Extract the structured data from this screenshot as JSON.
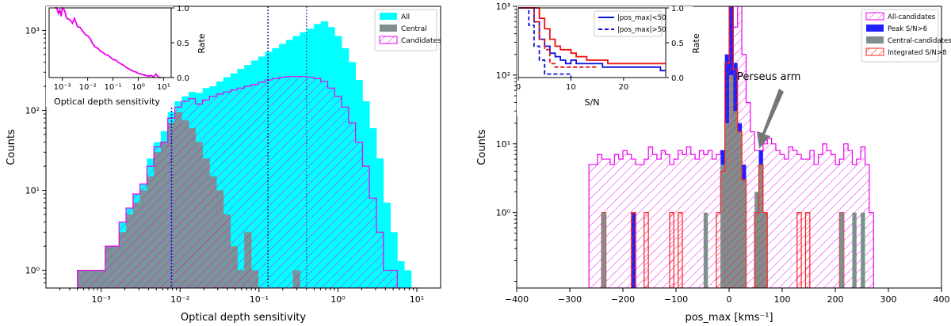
{
  "chart_data": [
    {
      "type": "histogram",
      "panel": "left",
      "xscale": "log",
      "yscale": "log",
      "xlabel": "Optical depth sensitivity",
      "ylabel": "Counts",
      "xlim": [
        0.0002,
        20
      ],
      "ylim": [
        0.6,
        2000
      ],
      "xticks": [
        {
          "v": 0.001,
          "label": "10⁻³"
        },
        {
          "v": 0.01,
          "label": "10⁻²"
        },
        {
          "v": 0.1,
          "label": "10⁻¹"
        },
        {
          "v": 1,
          "label": "10⁰"
        },
        {
          "v": 10,
          "label": "10¹"
        }
      ],
      "yticks": [
        {
          "v": 1,
          "label": "10⁰"
        },
        {
          "v": 10,
          "label": "10¹"
        },
        {
          "v": 100,
          "label": "10²"
        },
        {
          "v": 1000,
          "label": "10³"
        }
      ],
      "vlines": [
        {
          "x": 0.0078,
          "color": "#0000ee"
        },
        {
          "x": 0.13,
          "color": "#1a1aa0"
        },
        {
          "x": 0.4,
          "color": "#5a5ac8"
        }
      ],
      "legend": [
        "All",
        "Central",
        "Candidates"
      ],
      "bins": [
        0.0005,
        0.000612,
        0.00075,
        0.000918,
        0.001125,
        0.001378,
        0.001687,
        0.002067,
        0.002532,
        0.003101,
        0.003799,
        0.004653,
        0.0057,
        0.006982,
        0.008552,
        0.010476,
        0.012832,
        0.015719,
        0.019254,
        0.023585,
        0.02889,
        0.035389,
        0.04335,
        0.0531,
        0.065045,
        0.079676,
        0.097598,
        0.119551,
        0.146443,
        0.179384,
        0.219734,
        0.269161,
        0.329706,
        0.403868,
        0.494713,
        0.605993,
        0.742303,
        0.909275,
        1.113803,
        1.364339,
        1.671232,
        2.047155,
        2.507637,
        3.071698,
        3.762639,
        4.609,
        5.6457,
        6.9157,
        8.4712,
        10.3768
      ],
      "series": [
        {
          "name": "All",
          "color": "#00ffff",
          "values": [
            1,
            1,
            1,
            1,
            2,
            2,
            4,
            6,
            9,
            12,
            25,
            40,
            55,
            95,
            130,
            150,
            170,
            165,
            190,
            200,
            230,
            260,
            290,
            330,
            370,
            420,
            470,
            540,
            600,
            680,
            760,
            850,
            950,
            1050,
            1200,
            1300,
            1100,
            850,
            600,
            400,
            240,
            130,
            60,
            25,
            7,
            3,
            1.3,
            1,
            0.6
          ]
        },
        {
          "name": "Central",
          "color": "#7f8f8f",
          "values": [
            1,
            1,
            1,
            1,
            2,
            2,
            3,
            5,
            7,
            10,
            15,
            30,
            40,
            70,
            95,
            75,
            60,
            40,
            25,
            15,
            10,
            5,
            2,
            1,
            3,
            1,
            0.6,
            0.6,
            0.6,
            0.6,
            0.6,
            1,
            0.6,
            0.6,
            0.6,
            0.6,
            0.6,
            0.6,
            0.6,
            0.6,
            0.6,
            0.6,
            0.6,
            0.6,
            0.6,
            0.6,
            0.6,
            0.6,
            0.6
          ]
        },
        {
          "name": "Candidates",
          "color": "#ee00ee",
          "values": [
            1,
            1,
            1,
            1,
            2,
            2,
            4,
            6,
            9,
            12,
            20,
            35,
            40,
            80,
            110,
            130,
            140,
            120,
            135,
            150,
            160,
            170,
            180,
            190,
            200,
            210,
            225,
            240,
            250,
            260,
            265,
            265,
            265,
            260,
            250,
            230,
            190,
            150,
            110,
            70,
            40,
            20,
            8,
            3,
            1,
            1,
            0.6,
            0.6,
            0.6
          ]
        }
      ]
    },
    {
      "type": "line",
      "panel": "left-inset",
      "xscale": "log",
      "xlabel": "Optical depth sensitivity",
      "ylabel": "Rate",
      "xlim": [
        0.0003,
        20
      ],
      "ylim": [
        0,
        1.0
      ],
      "xticks": [
        {
          "v": 0.001,
          "label": "10⁻³"
        },
        {
          "v": 0.01,
          "label": "10⁻²"
        },
        {
          "v": 0.1,
          "label": "10⁻¹"
        },
        {
          "v": 1,
          "label": "10⁰"
        },
        {
          "v": 10,
          "label": "10¹"
        }
      ],
      "yticks": [
        {
          "v": 0,
          "label": "0.0"
        },
        {
          "v": 0.5,
          "label": "0.5"
        },
        {
          "v": 1,
          "label": "1.0"
        }
      ],
      "series": [
        {
          "name": "Candidate rate",
          "color": "#ee00ee",
          "x": [
            0.0005,
            0.0006,
            0.0007,
            0.0008,
            0.0009,
            0.001,
            0.0012,
            0.0015,
            0.002,
            0.0025,
            0.003,
            0.004,
            0.005,
            0.006,
            0.008,
            0.01,
            0.013,
            0.016,
            0.02,
            0.025,
            0.032,
            0.04,
            0.05,
            0.065,
            0.08,
            0.1,
            0.13,
            0.16,
            0.2,
            0.25,
            0.32,
            0.4,
            0.5,
            0.65,
            0.8,
            1.0,
            1.3,
            1.6,
            2.0,
            2.5,
            3.2,
            4,
            5,
            6.5,
            8
          ],
          "y": [
            1.0,
            1.0,
            0.92,
            0.97,
            0.88,
            1.0,
            0.97,
            0.85,
            0.83,
            0.78,
            0.85,
            0.73,
            0.72,
            0.68,
            0.62,
            0.6,
            0.55,
            0.48,
            0.44,
            0.42,
            0.38,
            0.36,
            0.33,
            0.32,
            0.29,
            0.26,
            0.25,
            0.22,
            0.2,
            0.18,
            0.15,
            0.13,
            0.11,
            0.09,
            0.08,
            0.06,
            0.05,
            0.04,
            0.03,
            0.02,
            0.03,
            0.01,
            0.05,
            0.0,
            0.0
          ]
        }
      ]
    },
    {
      "type": "histogram",
      "panel": "right",
      "xscale": "linear",
      "yscale": "log",
      "xlabel": "pos_max [kms⁻¹]",
      "ylabel": "Counts",
      "xlim": [
        -400,
        400
      ],
      "ylim": [
        0.08,
        1000
      ],
      "xticks": [
        {
          "v": -400,
          "label": "−400"
        },
        {
          "v": -300,
          "label": "−300"
        },
        {
          "v": -200,
          "label": "−200"
        },
        {
          "v": -100,
          "label": "−100"
        },
        {
          "v": 0,
          "label": "0"
        },
        {
          "v": 100,
          "label": "100"
        },
        {
          "v": 200,
          "label": "200"
        },
        {
          "v": 300,
          "label": "300"
        },
        {
          "v": 400,
          "label": "400"
        }
      ],
      "yticks": [
        {
          "v": 1,
          "label": "10⁰"
        },
        {
          "v": 10,
          "label": "10¹"
        },
        {
          "v": 100,
          "label": "10²"
        },
        {
          "v": 1000,
          "label": "10³"
        }
      ],
      "legend": [
        "All-candidates",
        "Peak S/N>6",
        "Central-candidates",
        "Integrated S/N>8"
      ],
      "annotation": {
        "text": "Perseus arm",
        "x": 60,
        "y": 10
      },
      "bin_width": 8,
      "series": [
        {
          "name": "All-candidates",
          "color": "#ee00ee",
          "start": -264,
          "values": [
            5,
            5,
            7,
            6,
            6,
            5,
            7,
            6,
            8,
            7,
            6,
            5,
            5,
            6,
            9,
            7,
            6,
            8,
            7,
            5,
            6,
            8,
            7,
            9,
            7,
            6,
            8,
            7,
            8,
            6,
            7,
            8,
            10,
            25,
            500,
            1000,
            200,
            40,
            15,
            8,
            8,
            10,
            12,
            10,
            8,
            7,
            6,
            9,
            8,
            7,
            6,
            6,
            8,
            5,
            7,
            10,
            8,
            7,
            5,
            6,
            10,
            8,
            5,
            6,
            9,
            5,
            1
          ]
        },
        {
          "name": "Peak S/N>6",
          "color": "#2020ff",
          "start": -16,
          "values": [
            8,
            200,
            1000,
            150,
            20,
            5,
            0.05,
            0.05,
            1,
            8,
            1
          ]
        },
        {
          "name": "Central-candidates",
          "color": "#7f8f8f",
          "start": -16,
          "values": [
            5,
            20,
            100,
            30,
            15,
            3,
            0.05,
            0.05,
            2,
            5,
            1
          ]
        },
        {
          "name": "Integrated S/N>8",
          "color": "#ff2020",
          "start": -24,
          "values": [
            1,
            4,
            150,
            1000,
            120,
            15,
            3,
            0.05,
            0.05,
            1,
            5,
            1
          ]
        }
      ],
      "isolated_bins": [
        {
          "series": "Integrated S/N>8",
          "x": -240,
          "value": 1
        },
        {
          "series": "Central-candidates",
          "x": -240,
          "value": 1
        },
        {
          "series": "Peak S/N>6",
          "x": -184,
          "value": 1
        },
        {
          "series": "Integrated S/N>8",
          "x": -184,
          "value": 1
        },
        {
          "series": "Integrated S/N>8",
          "x": -160,
          "value": 1
        },
        {
          "series": "Integrated S/N>8",
          "x": -112,
          "value": 1
        },
        {
          "series": "Integrated S/N>8",
          "x": -96,
          "value": 1
        },
        {
          "series": "Central-candidates",
          "x": -48,
          "value": 1
        },
        {
          "series": "Integrated S/N>8",
          "x": 128,
          "value": 1
        },
        {
          "series": "Integrated S/N>8",
          "x": 144,
          "value": 1
        },
        {
          "series": "Integrated S/N>8",
          "x": 208,
          "value": 1
        },
        {
          "series": "Central-candidates",
          "x": 208,
          "value": 1
        },
        {
          "series": "Central-candidates",
          "x": 232,
          "value": 1
        },
        {
          "series": "Central-candidates",
          "x": 248,
          "value": 1
        }
      ]
    },
    {
      "type": "line",
      "panel": "right-inset",
      "xlabel": "S/N",
      "ylabel": "Rate",
      "xlim": [
        0,
        28
      ],
      "ylim": [
        0,
        1.0
      ],
      "xticks": [
        {
          "v": 0,
          "label": "0"
        },
        {
          "v": 10,
          "label": "10"
        },
        {
          "v": 20,
          "label": "20"
        }
      ],
      "yticks": [
        {
          "v": 0,
          "label": "0.0"
        },
        {
          "v": 0.5,
          "label": "0.5"
        },
        {
          "v": 1,
          "label": "1.0"
        }
      ],
      "legend": [
        "|pos_max|<50",
        "|pos_max|>50"
      ],
      "series": [
        {
          "name": "peak <50",
          "color": "#1010dd",
          "dash": false,
          "x": [
            0,
            2,
            3,
            4,
            5,
            6,
            7,
            8,
            9,
            10,
            11,
            12,
            15,
            16,
            22,
            27,
            28
          ],
          "y": [
            1,
            1,
            0.8,
            0.55,
            0.45,
            0.35,
            0.3,
            0.25,
            0.2,
            0.25,
            0.2,
            0.2,
            0.2,
            0.15,
            0.15,
            0.1,
            0.1
          ]
        },
        {
          "name": "integrated <50",
          "color": "#ee1010",
          "dash": false,
          "x": [
            0,
            3,
            4,
            5,
            6,
            7,
            8,
            10,
            11,
            12,
            13,
            15,
            17,
            22,
            26,
            28
          ],
          "y": [
            1,
            1,
            0.85,
            0.7,
            0.55,
            0.45,
            0.4,
            0.35,
            0.3,
            0.3,
            0.25,
            0.25,
            0.2,
            0.2,
            0.2,
            0.2
          ]
        },
        {
          "name": "peak >50",
          "color": "#1010dd",
          "dash": true,
          "x": [
            0,
            1,
            2,
            3,
            4,
            5,
            8,
            10
          ],
          "y": [
            1,
            1,
            0.75,
            0.45,
            0.25,
            0.05,
            0.05,
            0.0
          ]
        },
        {
          "name": "integrated >50",
          "color": "#ee1010",
          "dash": true,
          "x": [
            0,
            1.5,
            3,
            4,
            5,
            6,
            7,
            9,
            15
          ],
          "y": [
            1,
            1,
            0.8,
            0.55,
            0.4,
            0.2,
            0.15,
            0.15,
            0.15
          ]
        }
      ]
    }
  ]
}
